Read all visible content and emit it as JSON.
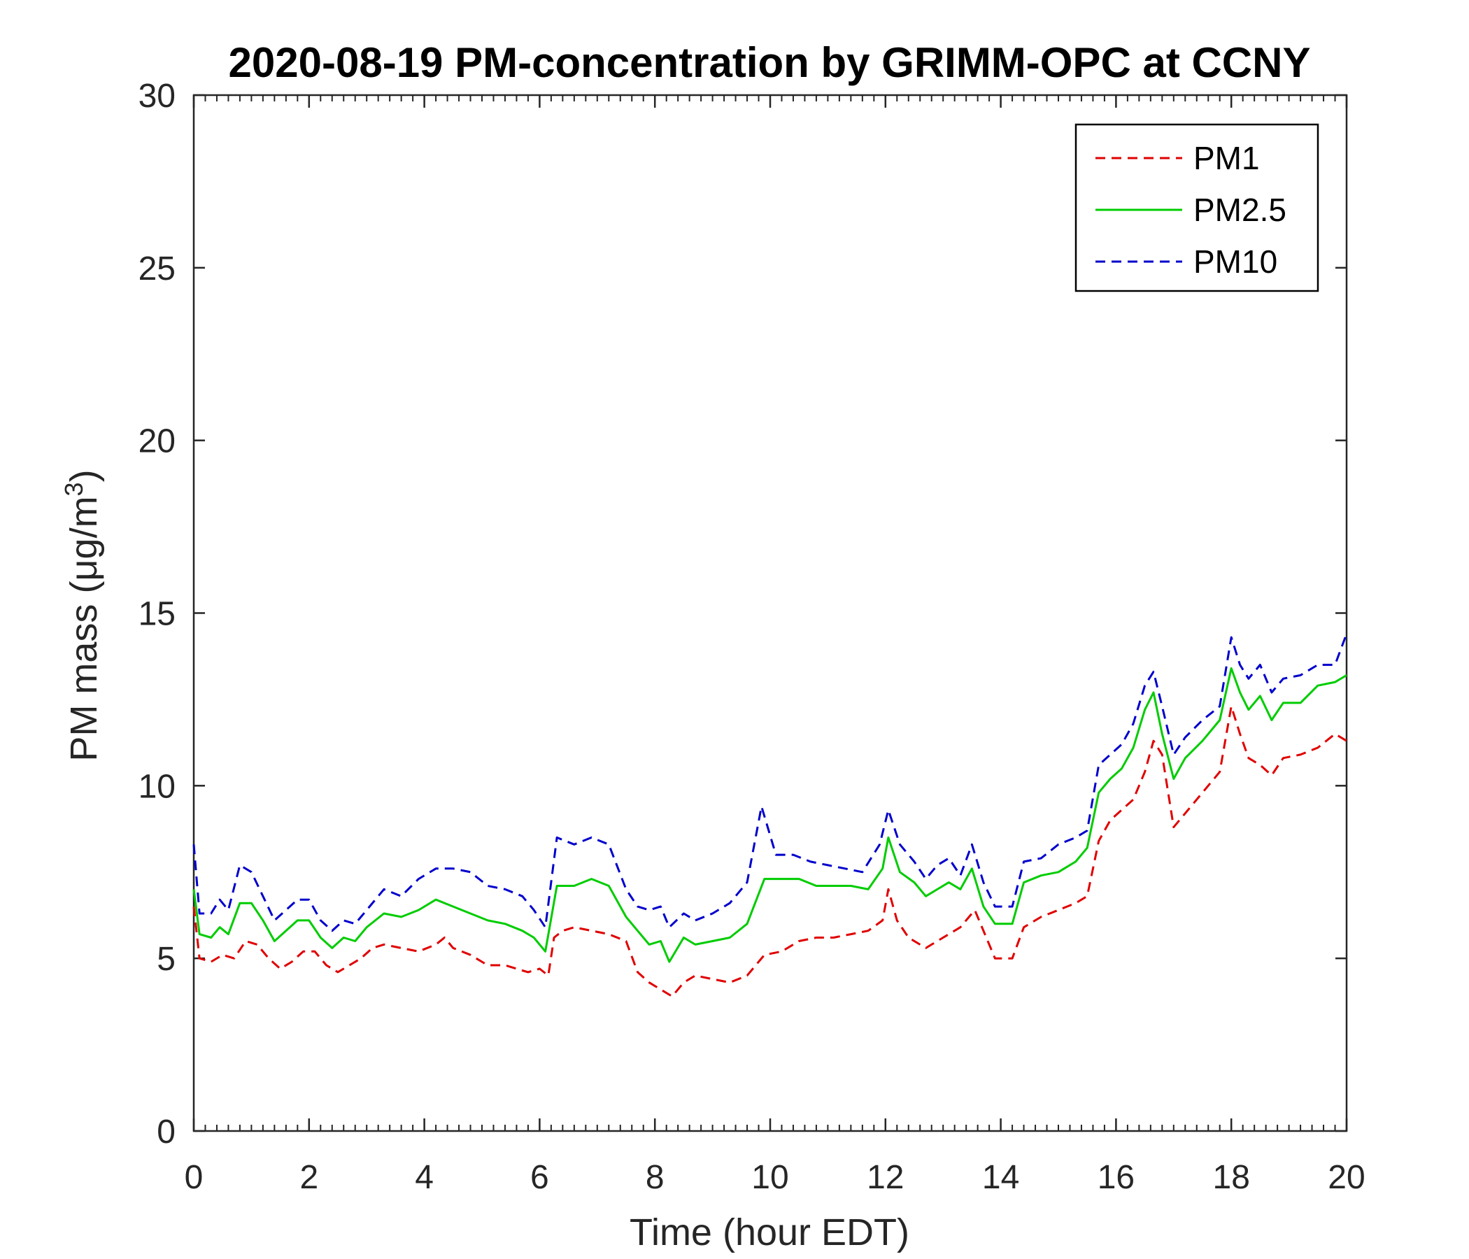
{
  "chart_data": {
    "type": "line",
    "title": "2020-08-19 PM-concentration by GRIMM-OPC at CCNY",
    "xlabel": "Time (hour EDT)",
    "ylabel_prefix": "PM mass (",
    "ylabel_unit": "μg/m",
    "ylabel_sup": "3",
    "ylabel_suffix": ")",
    "xlim": [
      0,
      20
    ],
    "ylim": [
      0,
      30
    ],
    "xticks": [
      0,
      2,
      4,
      6,
      8,
      10,
      12,
      14,
      16,
      18,
      20
    ],
    "yticks": [
      0,
      5,
      10,
      15,
      20,
      25,
      30
    ],
    "xtick_labels": [
      "0",
      "2",
      "4",
      "6",
      "8",
      "10",
      "12",
      "14",
      "16",
      "18",
      "20"
    ],
    "ytick_labels": [
      "0",
      "5",
      "10",
      "15",
      "20",
      "25",
      "30"
    ],
    "grid": false,
    "legend_position": "top-right",
    "series": [
      {
        "name": "PM1",
        "color": "#e00000",
        "dash": "dashed",
        "points": [
          [
            0,
            6.5
          ],
          [
            0.1,
            5.0
          ],
          [
            0.3,
            4.9
          ],
          [
            0.5,
            5.1
          ],
          [
            0.7,
            5.0
          ],
          [
            0.9,
            5.5
          ],
          [
            1.1,
            5.4
          ],
          [
            1.3,
            5.0
          ],
          [
            1.5,
            4.7
          ],
          [
            1.7,
            4.9
          ],
          [
            1.9,
            5.2
          ],
          [
            2.1,
            5.2
          ],
          [
            2.3,
            4.8
          ],
          [
            2.5,
            4.6
          ],
          [
            2.7,
            4.8
          ],
          [
            2.9,
            5.0
          ],
          [
            3.1,
            5.3
          ],
          [
            3.3,
            5.4
          ],
          [
            3.6,
            5.3
          ],
          [
            3.9,
            5.2
          ],
          [
            4.2,
            5.4
          ],
          [
            4.35,
            5.6
          ],
          [
            4.5,
            5.3
          ],
          [
            4.8,
            5.1
          ],
          [
            5.1,
            4.8
          ],
          [
            5.4,
            4.8
          ],
          [
            5.6,
            4.7
          ],
          [
            5.8,
            4.6
          ],
          [
            6.0,
            4.7
          ],
          [
            6.15,
            4.5
          ],
          [
            6.25,
            5.6
          ],
          [
            6.4,
            5.8
          ],
          [
            6.6,
            5.9
          ],
          [
            6.9,
            5.8
          ],
          [
            7.2,
            5.7
          ],
          [
            7.5,
            5.5
          ],
          [
            7.7,
            4.6
          ],
          [
            7.9,
            4.3
          ],
          [
            8.1,
            4.1
          ],
          [
            8.3,
            3.9
          ],
          [
            8.5,
            4.3
          ],
          [
            8.7,
            4.5
          ],
          [
            9.0,
            4.4
          ],
          [
            9.3,
            4.3
          ],
          [
            9.6,
            4.5
          ],
          [
            9.9,
            5.1
          ],
          [
            10.2,
            5.2
          ],
          [
            10.5,
            5.5
          ],
          [
            10.8,
            5.6
          ],
          [
            11.1,
            5.6
          ],
          [
            11.4,
            5.7
          ],
          [
            11.7,
            5.8
          ],
          [
            11.95,
            6.1
          ],
          [
            12.05,
            7.0
          ],
          [
            12.2,
            6.1
          ],
          [
            12.4,
            5.6
          ],
          [
            12.7,
            5.3
          ],
          [
            13.0,
            5.6
          ],
          [
            13.3,
            5.9
          ],
          [
            13.55,
            6.4
          ],
          [
            13.75,
            5.6
          ],
          [
            13.9,
            5.0
          ],
          [
            14.2,
            5.0
          ],
          [
            14.4,
            5.9
          ],
          [
            14.7,
            6.2
          ],
          [
            15.0,
            6.4
          ],
          [
            15.3,
            6.6
          ],
          [
            15.5,
            6.8
          ],
          [
            15.7,
            8.4
          ],
          [
            15.9,
            9.0
          ],
          [
            16.1,
            9.3
          ],
          [
            16.3,
            9.6
          ],
          [
            16.5,
            10.4
          ],
          [
            16.65,
            11.3
          ],
          [
            16.8,
            10.9
          ],
          [
            17.0,
            8.8
          ],
          [
            17.2,
            9.2
          ],
          [
            17.5,
            9.8
          ],
          [
            17.8,
            10.4
          ],
          [
            18.0,
            12.3
          ],
          [
            18.15,
            11.5
          ],
          [
            18.3,
            10.8
          ],
          [
            18.5,
            10.6
          ],
          [
            18.7,
            10.3
          ],
          [
            18.9,
            10.8
          ],
          [
            19.2,
            10.9
          ],
          [
            19.5,
            11.1
          ],
          [
            19.8,
            11.5
          ],
          [
            20.0,
            11.3
          ]
        ]
      },
      {
        "name": "PM2.5",
        "color": "#00cc00",
        "dash": "solid",
        "points": [
          [
            0,
            7.0
          ],
          [
            0.1,
            5.7
          ],
          [
            0.3,
            5.6
          ],
          [
            0.45,
            5.9
          ],
          [
            0.6,
            5.7
          ],
          [
            0.8,
            6.6
          ],
          [
            1.0,
            6.6
          ],
          [
            1.2,
            6.1
          ],
          [
            1.4,
            5.5
          ],
          [
            1.6,
            5.8
          ],
          [
            1.8,
            6.1
          ],
          [
            2.0,
            6.1
          ],
          [
            2.2,
            5.6
          ],
          [
            2.4,
            5.3
          ],
          [
            2.6,
            5.6
          ],
          [
            2.8,
            5.5
          ],
          [
            3.0,
            5.9
          ],
          [
            3.3,
            6.3
          ],
          [
            3.6,
            6.2
          ],
          [
            3.9,
            6.4
          ],
          [
            4.2,
            6.7
          ],
          [
            4.5,
            6.5
          ],
          [
            4.8,
            6.3
          ],
          [
            5.1,
            6.1
          ],
          [
            5.4,
            6.0
          ],
          [
            5.7,
            5.8
          ],
          [
            5.9,
            5.6
          ],
          [
            6.1,
            5.2
          ],
          [
            6.3,
            7.1
          ],
          [
            6.6,
            7.1
          ],
          [
            6.9,
            7.3
          ],
          [
            7.2,
            7.1
          ],
          [
            7.5,
            6.2
          ],
          [
            7.7,
            5.8
          ],
          [
            7.9,
            5.4
          ],
          [
            8.1,
            5.5
          ],
          [
            8.25,
            4.9
          ],
          [
            8.5,
            5.6
          ],
          [
            8.7,
            5.4
          ],
          [
            9.0,
            5.5
          ],
          [
            9.3,
            5.6
          ],
          [
            9.6,
            6.0
          ],
          [
            9.9,
            7.3
          ],
          [
            10.2,
            7.3
          ],
          [
            10.5,
            7.3
          ],
          [
            10.8,
            7.1
          ],
          [
            11.1,
            7.1
          ],
          [
            11.4,
            7.1
          ],
          [
            11.7,
            7.0
          ],
          [
            11.95,
            7.6
          ],
          [
            12.05,
            8.5
          ],
          [
            12.25,
            7.5
          ],
          [
            12.5,
            7.2
          ],
          [
            12.7,
            6.8
          ],
          [
            12.9,
            7.0
          ],
          [
            13.1,
            7.2
          ],
          [
            13.3,
            7.0
          ],
          [
            13.5,
            7.6
          ],
          [
            13.7,
            6.5
          ],
          [
            13.9,
            6.0
          ],
          [
            14.2,
            6.0
          ],
          [
            14.4,
            7.2
          ],
          [
            14.7,
            7.4
          ],
          [
            15.0,
            7.5
          ],
          [
            15.3,
            7.8
          ],
          [
            15.5,
            8.2
          ],
          [
            15.7,
            9.8
          ],
          [
            15.9,
            10.2
          ],
          [
            16.1,
            10.5
          ],
          [
            16.3,
            11.1
          ],
          [
            16.5,
            12.2
          ],
          [
            16.65,
            12.7
          ],
          [
            16.8,
            11.5
          ],
          [
            17.0,
            10.2
          ],
          [
            17.2,
            10.8
          ],
          [
            17.5,
            11.3
          ],
          [
            17.8,
            11.9
          ],
          [
            18.0,
            13.4
          ],
          [
            18.15,
            12.7
          ],
          [
            18.3,
            12.2
          ],
          [
            18.5,
            12.6
          ],
          [
            18.7,
            11.9
          ],
          [
            18.9,
            12.4
          ],
          [
            19.2,
            12.4
          ],
          [
            19.5,
            12.9
          ],
          [
            19.8,
            13.0
          ],
          [
            20.0,
            13.2
          ]
        ]
      },
      {
        "name": "PM10",
        "color": "#0000cc",
        "dash": "dashed",
        "points": [
          [
            0,
            8.3
          ],
          [
            0.1,
            6.3
          ],
          [
            0.3,
            6.3
          ],
          [
            0.45,
            6.7
          ],
          [
            0.6,
            6.4
          ],
          [
            0.8,
            7.7
          ],
          [
            1.0,
            7.5
          ],
          [
            1.2,
            6.8
          ],
          [
            1.4,
            6.1
          ],
          [
            1.6,
            6.4
          ],
          [
            1.8,
            6.7
          ],
          [
            2.0,
            6.7
          ],
          [
            2.2,
            6.1
          ],
          [
            2.4,
            5.8
          ],
          [
            2.6,
            6.1
          ],
          [
            2.8,
            6.0
          ],
          [
            3.0,
            6.4
          ],
          [
            3.3,
            7.0
          ],
          [
            3.6,
            6.8
          ],
          [
            3.9,
            7.3
          ],
          [
            4.2,
            7.6
          ],
          [
            4.5,
            7.6
          ],
          [
            4.8,
            7.5
          ],
          [
            5.1,
            7.1
          ],
          [
            5.4,
            7.0
          ],
          [
            5.7,
            6.8
          ],
          [
            5.9,
            6.4
          ],
          [
            6.1,
            5.9
          ],
          [
            6.3,
            8.5
          ],
          [
            6.6,
            8.3
          ],
          [
            6.9,
            8.5
          ],
          [
            7.2,
            8.3
          ],
          [
            7.5,
            7.0
          ],
          [
            7.7,
            6.5
          ],
          [
            7.9,
            6.4
          ],
          [
            8.1,
            6.5
          ],
          [
            8.25,
            5.9
          ],
          [
            8.5,
            6.3
          ],
          [
            8.7,
            6.1
          ],
          [
            9.0,
            6.3
          ],
          [
            9.3,
            6.6
          ],
          [
            9.6,
            7.2
          ],
          [
            9.85,
            9.4
          ],
          [
            10.1,
            8.0
          ],
          [
            10.4,
            8.0
          ],
          [
            10.7,
            7.8
          ],
          [
            11.0,
            7.7
          ],
          [
            11.3,
            7.6
          ],
          [
            11.6,
            7.5
          ],
          [
            11.9,
            8.3
          ],
          [
            12.05,
            9.3
          ],
          [
            12.25,
            8.3
          ],
          [
            12.5,
            7.8
          ],
          [
            12.7,
            7.3
          ],
          [
            12.9,
            7.7
          ],
          [
            13.1,
            7.9
          ],
          [
            13.3,
            7.4
          ],
          [
            13.5,
            8.3
          ],
          [
            13.7,
            7.2
          ],
          [
            13.9,
            6.5
          ],
          [
            14.2,
            6.5
          ],
          [
            14.4,
            7.8
          ],
          [
            14.7,
            7.9
          ],
          [
            15.0,
            8.3
          ],
          [
            15.3,
            8.5
          ],
          [
            15.5,
            8.7
          ],
          [
            15.7,
            10.6
          ],
          [
            15.9,
            10.9
          ],
          [
            16.1,
            11.2
          ],
          [
            16.3,
            11.8
          ],
          [
            16.5,
            12.9
          ],
          [
            16.65,
            13.3
          ],
          [
            16.8,
            12.3
          ],
          [
            17.0,
            10.9
          ],
          [
            17.2,
            11.4
          ],
          [
            17.5,
            11.9
          ],
          [
            17.8,
            12.3
          ],
          [
            18.0,
            14.3
          ],
          [
            18.15,
            13.5
          ],
          [
            18.3,
            13.1
          ],
          [
            18.5,
            13.5
          ],
          [
            18.7,
            12.7
          ],
          [
            18.9,
            13.1
          ],
          [
            19.2,
            13.2
          ],
          [
            19.5,
            13.5
          ],
          [
            19.8,
            13.5
          ],
          [
            20.0,
            14.4
          ]
        ]
      }
    ]
  }
}
